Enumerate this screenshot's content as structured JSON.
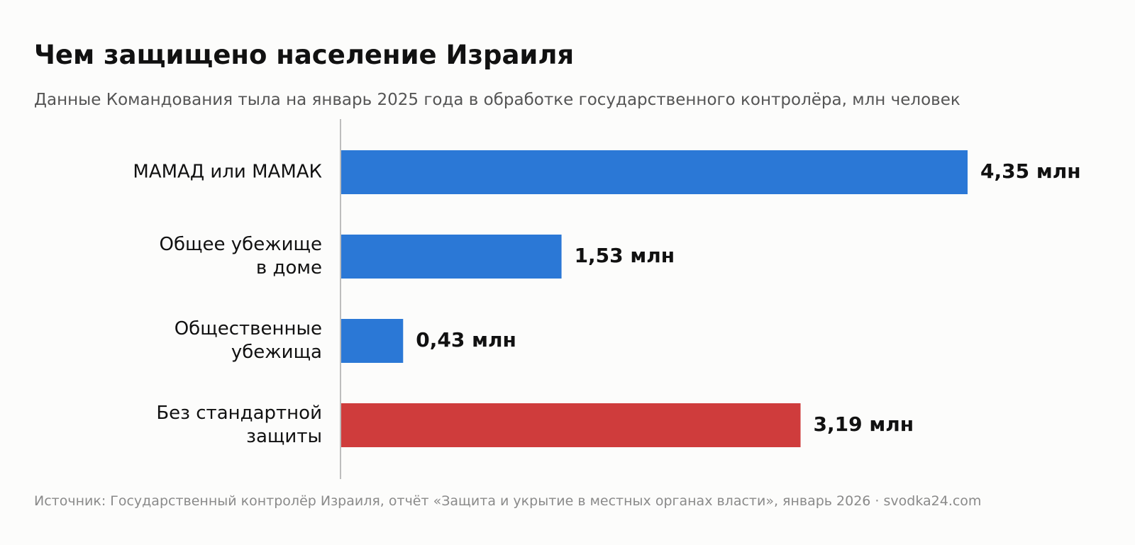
{
  "header": {
    "title": "Чем защищено население Израиля",
    "subtitle": "Данные Командования тыла на январь 2025 года в обработке государственного контролёра, млн человек"
  },
  "footer": {
    "source": "Источник: Государственный контролёр Израиля, отчёт «Защита и укрытие в местных органах власти», январь 2026 · svodka24.com"
  },
  "colors": {
    "protected": "#2b78d6",
    "unprotected": "#cf3c3c",
    "axis": "#bdbdbd",
    "background": "#fcfcfb"
  },
  "chart_data": {
    "type": "bar",
    "orientation": "horizontal",
    "categories": [
      [
        "МАМАД или МАМАК"
      ],
      [
        "Общее убежище",
        "в доме"
      ],
      [
        "Общественные",
        "убежища"
      ],
      [
        "Без стандартной",
        "защиты"
      ]
    ],
    "values": [
      4.35,
      1.53,
      0.43,
      3.19
    ],
    "value_labels": [
      "4,35 млн",
      "1,53 млн",
      "0,43 млн",
      "3,19 млн"
    ],
    "bar_colors": [
      "#2b78d6",
      "#2b78d6",
      "#2b78d6",
      "#cf3c3c"
    ],
    "xlim": [
      0,
      4.35
    ],
    "grid": false
  }
}
